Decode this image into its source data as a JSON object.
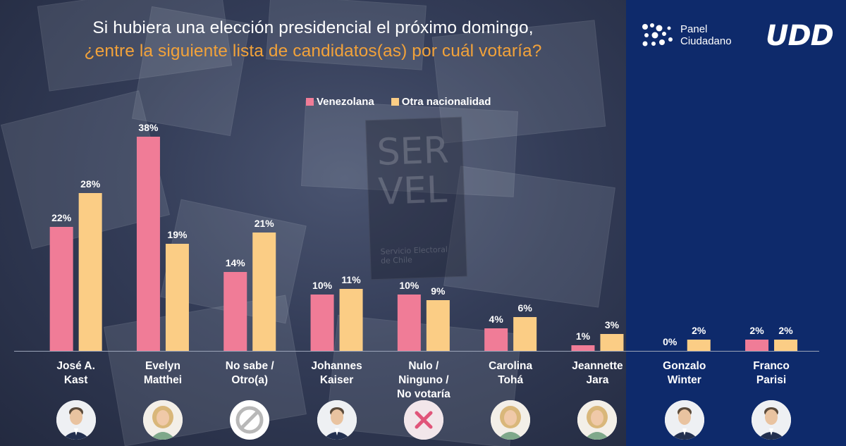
{
  "title_line1": "Si hubiera una elección presidencial el próximo domingo,",
  "title_line2": "¿entre la siguiente lista de candidatos(as) por cuál votaría?",
  "logos": {
    "panel_line1": "Panel",
    "panel_line2": "Ciudadano",
    "udd": "UDD"
  },
  "background_text": {
    "servel": "SER VEL",
    "servicio": "Servicio Electoral de Chile"
  },
  "colors": {
    "venezolana": "#f07c97",
    "otra": "#fbcd85",
    "title_accent": "#f2a23a",
    "panel": "#0e2a6b"
  },
  "chart_data": {
    "type": "bar",
    "title": "Si hubiera una elección presidencial el próximo domingo, ¿entre la siguiente lista de candidatos(as) por cuál votaría?",
    "categories": [
      [
        "José A.",
        "Kast"
      ],
      [
        "Evelyn",
        "Matthei"
      ],
      [
        "No sabe /",
        "Otro(a)"
      ],
      [
        "Johannes",
        "Kaiser"
      ],
      [
        "Nulo /",
        "Ninguno /",
        "No votaría"
      ],
      [
        "Carolina",
        "Tohá"
      ],
      [
        "Jeannette",
        "Jara"
      ],
      [
        "Gonzalo",
        "Winter"
      ],
      [
        "Franco",
        "Parisi"
      ]
    ],
    "series": [
      {
        "name": "Venezolana",
        "values": [
          22,
          38,
          14,
          10,
          10,
          4,
          1,
          0,
          2
        ],
        "labels": [
          "22%",
          "38%",
          "14%",
          "10%",
          "10%",
          "4%",
          "1%",
          "0%",
          "2%"
        ]
      },
      {
        "name": "Otra nacionalidad",
        "values": [
          28,
          19,
          21,
          11,
          9,
          6,
          3,
          2,
          2
        ],
        "labels": [
          "28%",
          "19%",
          "21%",
          "11%",
          "9%",
          "6%",
          "3%",
          "2%",
          "2%"
        ]
      }
    ],
    "ylim": [
      0,
      38
    ],
    "legend_position": "top",
    "grid": false,
    "unit": "%"
  },
  "avatars": [
    {
      "icon": "person-photo-icon",
      "kind": "male"
    },
    {
      "icon": "person-photo-icon",
      "kind": "female"
    },
    {
      "icon": "no-sabe-icon",
      "kind": "symbol-circle"
    },
    {
      "icon": "person-photo-icon",
      "kind": "male"
    },
    {
      "icon": "nulo-x-icon",
      "kind": "symbol-x"
    },
    {
      "icon": "person-photo-icon",
      "kind": "female"
    },
    {
      "icon": "person-photo-icon",
      "kind": "female"
    },
    {
      "icon": "person-photo-icon",
      "kind": "male"
    },
    {
      "icon": "person-photo-icon",
      "kind": "male"
    }
  ]
}
